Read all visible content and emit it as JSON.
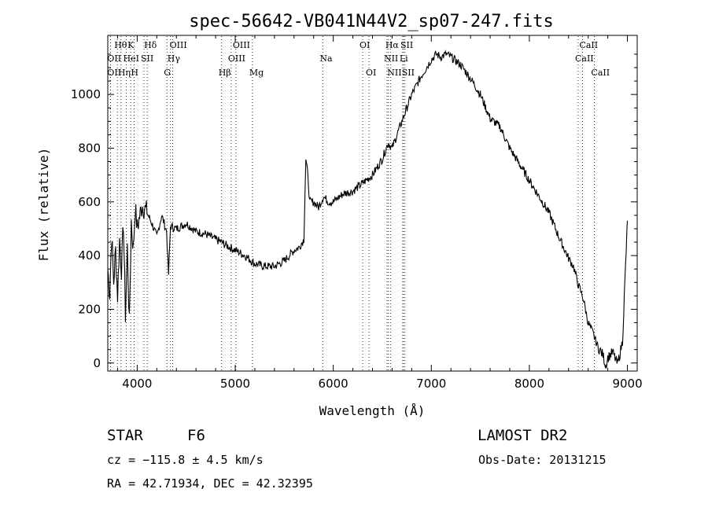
{
  "chart_data": {
    "type": "line",
    "title": "spec-56642-VB041N44V2_sp07-247.fits",
    "xlabel": "Wavelength (Å)",
    "ylabel": "Flux (relative)",
    "xlim": [
      3700,
      9100
    ],
    "ylim": [
      -30,
      1220
    ],
    "xticks": [
      4000,
      5000,
      6000,
      7000,
      8000,
      9000
    ],
    "yticks": [
      0,
      200,
      400,
      600,
      800,
      1000
    ],
    "grid": false,
    "series": [
      {
        "x": [
          3700,
          3720,
          3740,
          3760,
          3780,
          3800,
          3820,
          3840,
          3860,
          3880,
          3900,
          3920,
          3940,
          3960,
          3980,
          4000,
          4050,
          4100,
          4150,
          4200,
          4250,
          4300,
          4320,
          4340,
          4400,
          4500,
          4600,
          4700,
          4800,
          4860,
          4900,
          5000,
          5100,
          5200,
          5300,
          5400,
          5500,
          5600,
          5650,
          5700,
          5720,
          5740,
          5760,
          5800,
          5850,
          5900,
          5950,
          6000,
          6100,
          6200,
          6300,
          6400,
          6500,
          6560,
          6600,
          6700,
          6800,
          6900,
          6950,
          7000,
          7050,
          7100,
          7150,
          7200,
          7300,
          7400,
          7500,
          7600,
          7700,
          7800,
          7900,
          8000,
          8100,
          8200,
          8300,
          8400,
          8450,
          8500,
          8550,
          8600,
          8650,
          8700,
          8750,
          8780,
          8800,
          8850,
          8900,
          8950,
          9000
        ],
        "y": [
          350,
          260,
          480,
          300,
          420,
          250,
          460,
          350,
          520,
          180,
          430,
          140,
          530,
          420,
          580,
          500,
          590,
          560,
          520,
          470,
          550,
          490,
          330,
          510,
          500,
          520,
          490,
          480,
          460,
          450,
          440,
          420,
          400,
          370,
          360,
          360,
          380,
          420,
          430,
          460,
          760,
          700,
          600,
          600,
          580,
          620,
          600,
          600,
          630,
          640,
          670,
          700,
          760,
          820,
          800,
          900,
          1000,
          1070,
          1100,
          1130,
          1150,
          1140,
          1150,
          1140,
          1110,
          1060,
          1000,
          910,
          880,
          800,
          740,
          680,
          620,
          560,
          470,
          390,
          360,
          290,
          240,
          150,
          110,
          60,
          30,
          -10,
          20,
          40,
          -5,
          80,
          530
        ]
      }
    ],
    "line_markers": [
      {
        "label": "Hθ",
        "x": 3798,
        "row": 0
      },
      {
        "label": "K",
        "x": 3934,
        "row": 0
      },
      {
        "label": "Hδ",
        "x": 4102,
        "row": 0
      },
      {
        "label": "OIII",
        "x": 4363,
        "row": 0
      },
      {
        "label": "OIII",
        "x": 5007,
        "row": 0
      },
      {
        "label": "OI",
        "x": 6300,
        "row": 0
      },
      {
        "label": "Hα",
        "x": 6563,
        "row": 0
      },
      {
        "label": "SII",
        "x": 6717,
        "row": 0
      },
      {
        "label": "CaII",
        "x": 8542,
        "row": 0
      },
      {
        "label": "OII",
        "x": 3727,
        "row": 1
      },
      {
        "label": "HeI",
        "x": 3889,
        "row": 1
      },
      {
        "label": "SII",
        "x": 4069,
        "row": 1
      },
      {
        "label": "Hγ",
        "x": 4340,
        "row": 1
      },
      {
        "label": "OIII",
        "x": 4959,
        "row": 1
      },
      {
        "label": "Na",
        "x": 5893,
        "row": 1
      },
      {
        "label": "NII",
        "x": 6548,
        "row": 1
      },
      {
        "label": "Li",
        "x": 6708,
        "row": 1
      },
      {
        "label": "CaII",
        "x": 8498,
        "row": 1
      },
      {
        "label": "OII",
        "x": 3727,
        "row": 2
      },
      {
        "label": "Hη",
        "x": 3835,
        "row": 2
      },
      {
        "label": "H",
        "x": 3968,
        "row": 2
      },
      {
        "label": "G",
        "x": 4304,
        "row": 2
      },
      {
        "label": "Hβ",
        "x": 4861,
        "row": 2
      },
      {
        "label": "Mg",
        "x": 5175,
        "row": 2
      },
      {
        "label": "OI",
        "x": 6364,
        "row": 2
      },
      {
        "label": "NII",
        "x": 6583,
        "row": 2
      },
      {
        "label": "SII",
        "x": 6731,
        "row": 2
      },
      {
        "label": "CaII",
        "x": 8662,
        "row": 2
      }
    ]
  },
  "info": {
    "class": "STAR",
    "subclass": "F6",
    "survey": "LAMOST DR2",
    "cz": "cz = −115.8 ± 4.5 km/s",
    "obs_date": "Obs-Date: 20131215",
    "coords": "RA =  42.71934, DEC =  42.32395"
  }
}
